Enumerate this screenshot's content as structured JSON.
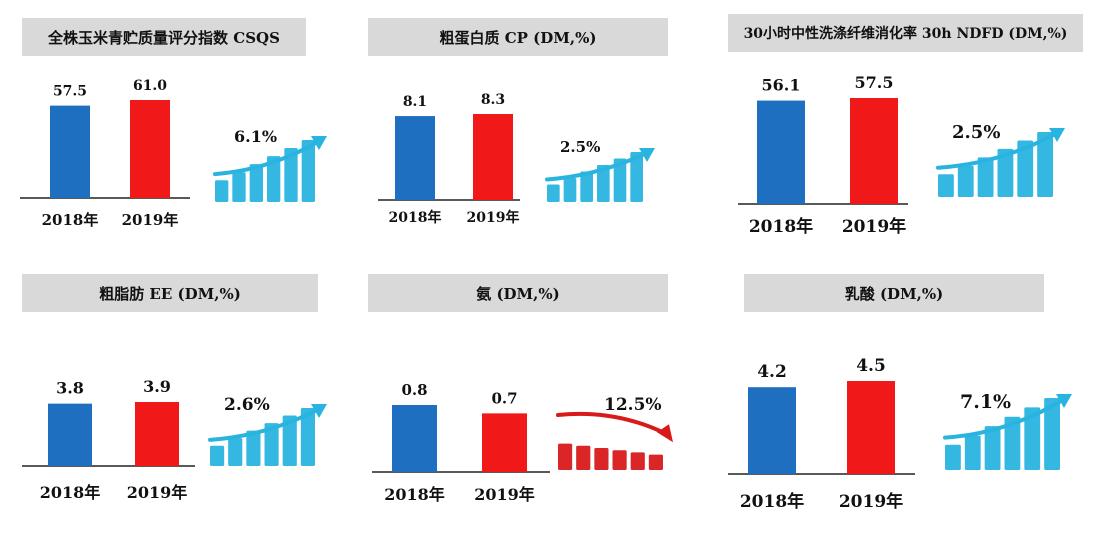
{
  "colors": {
    "y2018": "#1f6fc0",
    "y2019": "#f01818",
    "up": "#29b4df",
    "down": "#d81a1a",
    "header_bg": "#d9d9d9"
  },
  "chart_data": [
    {
      "type": "bar",
      "title": "全株玉米青贮质量评分指数 CSQS",
      "categories": [
        "2018年",
        "2019年"
      ],
      "values": [
        57.5,
        61.0
      ],
      "value_labels": [
        "57.5",
        "61.0"
      ],
      "change": "6.1%",
      "trend": "up"
    },
    {
      "type": "bar",
      "title": "粗蛋白质 CP (DM,%)",
      "categories": [
        "2018年",
        "2019年"
      ],
      "values": [
        8.1,
        8.3
      ],
      "value_labels": [
        "8.1",
        "8.3"
      ],
      "change": "2.5%",
      "trend": "up"
    },
    {
      "type": "bar",
      "title": "30小时中性洗涤纤维消化率 30h NDFD (DM,%)",
      "categories": [
        "2018年",
        "2019年"
      ],
      "values": [
        56.1,
        57.5
      ],
      "value_labels": [
        "56.1",
        "57.5"
      ],
      "change": "2.5%",
      "trend": "up"
    },
    {
      "type": "bar",
      "title": "粗脂肪 EE (DM,%)",
      "categories": [
        "2018年",
        "2019年"
      ],
      "values": [
        3.8,
        3.9
      ],
      "value_labels": [
        "3.8",
        "3.9"
      ],
      "change": "2.6%",
      "trend": "up"
    },
    {
      "type": "bar",
      "title": "氨 (DM,%)",
      "categories": [
        "2018年",
        "2019年"
      ],
      "values": [
        0.8,
        0.7
      ],
      "value_labels": [
        "0.8",
        "0.7"
      ],
      "change": "12.5%",
      "trend": "down"
    },
    {
      "type": "bar",
      "title": "乳酸 (DM,%)",
      "categories": [
        "2018年",
        "2019年"
      ],
      "values": [
        4.2,
        4.5
      ],
      "value_labels": [
        "4.2",
        "4.5"
      ],
      "change": "7.1%",
      "trend": "up"
    }
  ]
}
